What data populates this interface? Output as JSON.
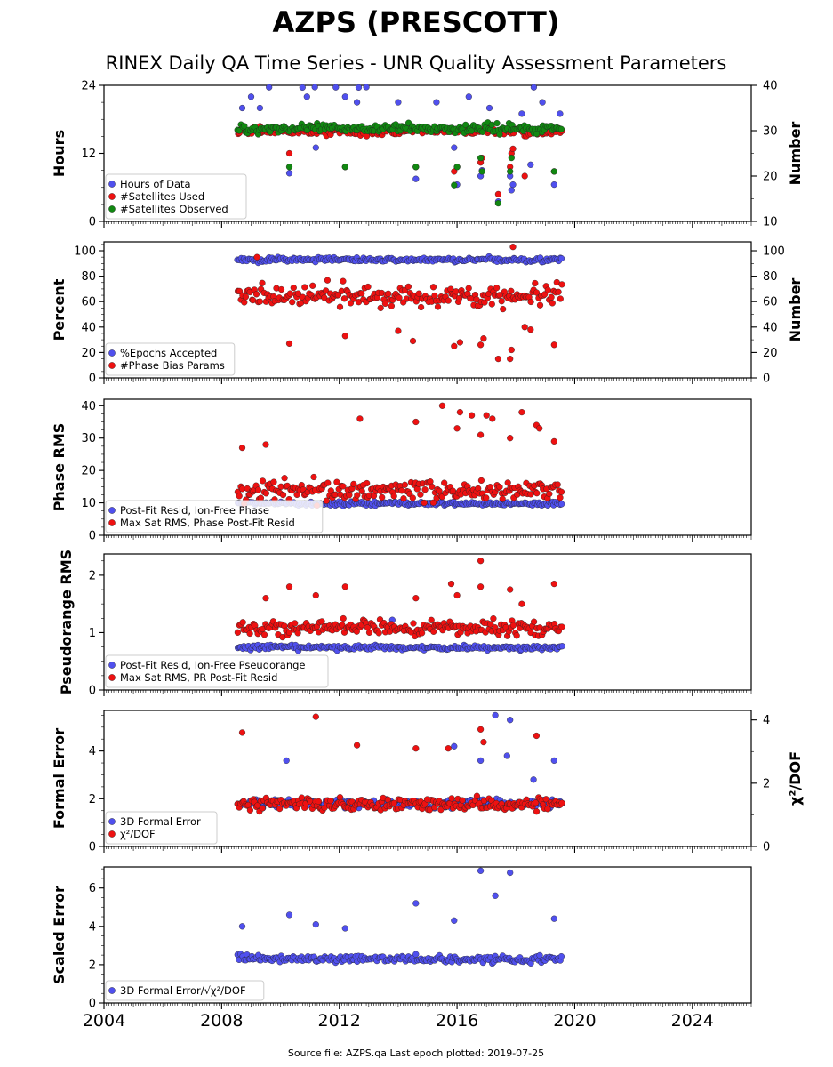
{
  "title": "AZPS (PRESCOTT)",
  "subtitle": "RINEX Daily QA Time Series - UNR Quality Assessment Parameters",
  "footer": "Source file: AZPS.qa Last epoch plotted: 2019-07-25",
  "colors": {
    "blue": "#5050ee",
    "red": "#ee1111",
    "green": "#118811",
    "axis": "#000000"
  },
  "chart_data": [
    {
      "type": "scatter",
      "id": "hours",
      "ylabel": "Hours",
      "ylabel2": "Number",
      "xlim": [
        2004,
        2026
      ],
      "ylim": [
        0,
        24
      ],
      "ylim2": [
        10,
        40
      ],
      "yticks": [
        0,
        12,
        24
      ],
      "yticks2": [
        10,
        20,
        30,
        40
      ],
      "legend": "lower-left",
      "series": [
        {
          "name": "Hours of Data",
          "color": "blue",
          "axis": "left",
          "typical": 23.9,
          "spread": 0.2,
          "x": [
            2008.7,
            2009.0,
            2009.3,
            2010.3,
            2010.9,
            2011.2,
            2012.2,
            2012.6,
            2014.0,
            2014.6,
            2015.3,
            2015.9,
            2016.0,
            2016.4,
            2016.8,
            2016.85,
            2017.1,
            2017.4,
            2017.8,
            2017.85,
            2017.9,
            2018.2,
            2018.5,
            2018.9,
            2019.3,
            2019.5
          ],
          "y": [
            20,
            22,
            20,
            8.5,
            22,
            13,
            22,
            21,
            21,
            7.5,
            21,
            13,
            6.5,
            22,
            8,
            9,
            20,
            3.5,
            8,
            5.5,
            6.5,
            19,
            10,
            21,
            6.5,
            19
          ]
        },
        {
          "name": "#Satellites Used",
          "color": "red",
          "axis": "right",
          "typical": 29.8,
          "spread": 0.8,
          "x": [
            2009.3,
            2010.3,
            2011.2,
            2012.2,
            2014.6,
            2015.9,
            2016.0,
            2016.8,
            2016.85,
            2017.4,
            2017.8,
            2017.85,
            2017.9,
            2018.3,
            2019.3
          ],
          "y": [
            31,
            25,
            30,
            22,
            22,
            21,
            22,
            23,
            24,
            16,
            22,
            25,
            26,
            20,
            21
          ]
        },
        {
          "name": "#Satellites Observed",
          "color": "green",
          "axis": "right",
          "typical": 30.5,
          "spread": 1.0,
          "x": [
            2010.3,
            2012.2,
            2014.6,
            2015.9,
            2016.0,
            2016.8,
            2016.85,
            2017.4,
            2017.8,
            2017.85,
            2019.3
          ],
          "y": [
            22,
            22,
            22,
            18,
            22,
            24,
            21,
            14,
            21,
            24,
            21
          ]
        }
      ]
    },
    {
      "type": "scatter",
      "id": "percent",
      "ylabel": "Percent",
      "ylabel2": "Number",
      "xlim": [
        2004,
        2026
      ],
      "ylim": [
        0,
        107
      ],
      "ylim2": [
        0,
        107
      ],
      "yticks": [
        0,
        20,
        40,
        60,
        80,
        100
      ],
      "yticks2": [
        0,
        20,
        40,
        60,
        80,
        100
      ],
      "legend": "lower-left",
      "series": [
        {
          "name": "%Epochs Accepted",
          "color": "blue",
          "axis": "left",
          "typical": 93,
          "spread": 1.8,
          "x": [],
          "y": []
        },
        {
          "name": "#Phase Bias Params",
          "color": "red",
          "axis": "right",
          "typical": 64,
          "spread": 8,
          "x": [
            2009.2,
            2010.3,
            2012.2,
            2014.0,
            2014.5,
            2015.9,
            2016.1,
            2016.8,
            2016.9,
            2017.4,
            2017.8,
            2017.85,
            2017.9,
            2018.3,
            2018.5,
            2019.3
          ],
          "y": [
            95,
            27,
            33,
            37,
            29,
            25,
            28,
            26,
            31,
            15,
            15,
            22,
            103,
            40,
            38,
            26
          ]
        }
      ]
    },
    {
      "type": "scatter",
      "id": "phase",
      "ylabel": "Phase RMS",
      "xlim": [
        2004,
        2026
      ],
      "ylim": [
        0,
        42
      ],
      "yticks": [
        0,
        10,
        20,
        30,
        40
      ],
      "legend": "lower-left",
      "series": [
        {
          "name": "Post-Fit Resid, Ion-Free Phase",
          "color": "blue",
          "typical": 9.8,
          "spread": 0.6,
          "x": [],
          "y": []
        },
        {
          "name": "Max Sat RMS, Phase Post-Fit Resid",
          "color": "red",
          "typical": 14,
          "spread": 3.5,
          "x": [
            2008.7,
            2009.5,
            2012.7,
            2014.6,
            2015.5,
            2016.0,
            2016.1,
            2016.5,
            2016.8,
            2017.0,
            2017.2,
            2017.8,
            2018.2,
            2018.7,
            2018.8,
            2019.3
          ],
          "y": [
            27,
            28,
            36,
            35,
            40,
            33,
            38,
            37,
            31,
            37,
            36,
            30,
            38,
            34,
            33,
            29
          ]
        }
      ]
    },
    {
      "type": "scatter",
      "id": "pseudorange",
      "ylabel": "Pseudorange RMS",
      "xlim": [
        2004,
        2026
      ],
      "ylim": [
        0,
        2.37
      ],
      "yticks": [
        0,
        1,
        2
      ],
      "legend": "lower-left",
      "series": [
        {
          "name": "Post-Fit Resid, Ion-Free Pseudorange",
          "color": "blue",
          "typical": 0.74,
          "spread": 0.04,
          "x": [
            2013.8
          ],
          "y": [
            1.22
          ]
        },
        {
          "name": "Max Sat RMS, PR Post-Fit Resid",
          "color": "red",
          "typical": 1.08,
          "spread": 0.12,
          "x": [
            2009.5,
            2010.3,
            2011.2,
            2012.2,
            2014.6,
            2015.8,
            2016.0,
            2016.8,
            2016.8,
            2017.8,
            2018.2,
            2019.3
          ],
          "y": [
            1.6,
            1.8,
            1.65,
            1.8,
            1.6,
            1.85,
            1.65,
            2.25,
            1.8,
            1.75,
            1.5,
            1.85
          ]
        }
      ]
    },
    {
      "type": "scatter",
      "id": "formal",
      "ylabel": "Formal Error",
      "ylabel2": "χ²/DOF",
      "xlim": [
        2004,
        2026
      ],
      "ylim": [
        0,
        5.7
      ],
      "ylim2": [
        0,
        4.3
      ],
      "yticks": [
        0,
        2,
        4
      ],
      "yticks2": [
        0,
        2,
        4
      ],
      "legend": "lower-left",
      "series": [
        {
          "name": "3D Formal Error",
          "color": "blue",
          "axis": "left",
          "typical": 1.8,
          "spread": 0.2,
          "x": [
            2010.2,
            2015.9,
            2016.8,
            2017.3,
            2017.7,
            2017.8,
            2018.6,
            2019.3
          ],
          "y": [
            3.6,
            4.2,
            3.6,
            5.5,
            3.8,
            5.3,
            2.8,
            3.6
          ]
        },
        {
          "name": "χ²/DOF",
          "color": "red",
          "axis": "right",
          "typical": 1.35,
          "spread": 0.2,
          "x": [
            2008.7,
            2011.2,
            2012.6,
            2014.6,
            2015.7,
            2016.8,
            2016.9,
            2018.7
          ],
          "y": [
            3.6,
            4.1,
            3.2,
            3.1,
            3.1,
            3.7,
            3.3,
            3.5
          ]
        }
      ]
    },
    {
      "type": "scatter",
      "id": "scaled",
      "ylabel": "Scaled Error",
      "xlim": [
        2004,
        2026
      ],
      "ylim": [
        0,
        7.1
      ],
      "yticks": [
        0,
        2,
        4,
        6
      ],
      "xticks": [
        2004,
        2008,
        2012,
        2016,
        2020,
        2024
      ],
      "legend": "lower-left",
      "series": [
        {
          "name": "3D Formal Error/√χ²/DOF",
          "color": "blue",
          "typical": 2.3,
          "spread": 0.2,
          "x": [
            2008.7,
            2010.3,
            2011.2,
            2012.2,
            2014.6,
            2015.9,
            2016.8,
            2017.3,
            2017.8,
            2019.3
          ],
          "y": [
            4.0,
            4.6,
            4.1,
            3.9,
            5.2,
            4.3,
            6.9,
            5.6,
            6.8,
            4.4
          ]
        }
      ]
    }
  ]
}
